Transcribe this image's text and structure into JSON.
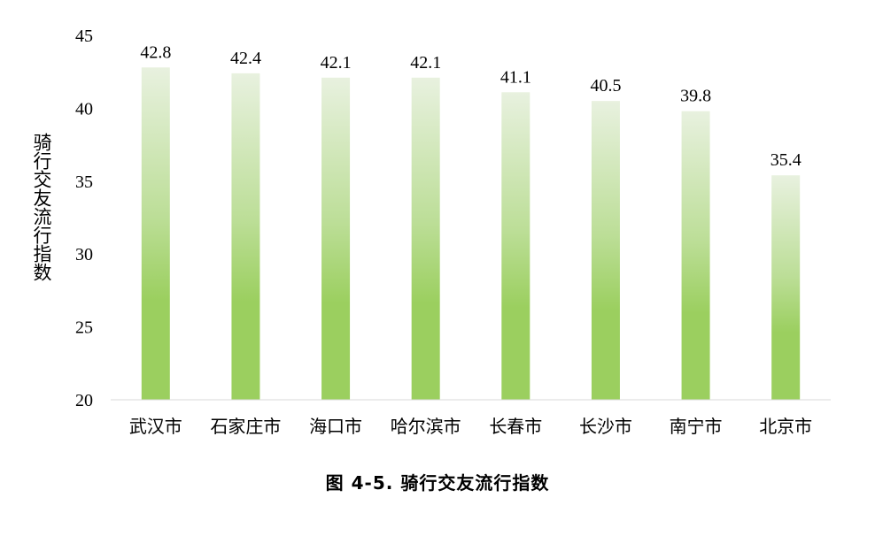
{
  "chart_data": {
    "type": "bar",
    "ylabel": "骑行交友流行指数",
    "xlabel": "",
    "ylim": [
      20,
      45
    ],
    "yticks": [
      20,
      25,
      30,
      35,
      40,
      45
    ],
    "categories": [
      "武汉市",
      "石家庄市",
      "海口市",
      "哈尔滨市",
      "长春市",
      "长沙市",
      "南宁市",
      "北京市"
    ],
    "values": [
      42.8,
      42.4,
      42.1,
      42.1,
      41.1,
      40.5,
      39.8,
      35.4
    ],
    "data_labels": [
      "42.8",
      "42.4",
      "42.1",
      "42.1",
      "41.1",
      "40.5",
      "39.8",
      "35.4"
    ],
    "bar_color_top": "#e8f1df",
    "bar_color_bottom": "#9bcf5f",
    "grid": false
  },
  "caption": "图 4-5. 骑行交友流行指数"
}
